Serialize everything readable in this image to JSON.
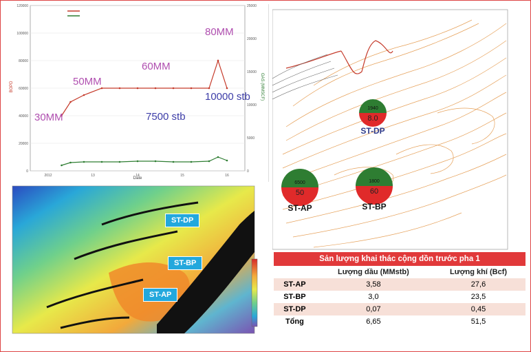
{
  "chart_data": {
    "type": "line",
    "xlabel": "Date",
    "ylabel_left": "BOPD",
    "ylabel_right": "GAS (MMSCF)",
    "x_ticks": [
      "2012",
      "13",
      "14",
      "15",
      "16"
    ],
    "y_left_ticks": [
      "0",
      "20000",
      "40000",
      "60000",
      "80000",
      "100000",
      "120000"
    ],
    "y_right_ticks": [
      "0",
      "5000",
      "10000",
      "15000",
      "20000",
      "25000"
    ],
    "ylim_left": [
      0,
      120000
    ],
    "ylim_right": [
      0,
      25000
    ],
    "series": [
      {
        "color": "#c53a2a",
        "x": [
          2012.3,
          2012.5,
          2012.8,
          2013.2,
          2013.6,
          2014.0,
          2014.4,
          2014.8,
          2015.2,
          2015.6,
          2015.8,
          2016.0
        ],
        "values": [
          40000,
          50000,
          55000,
          60000,
          60000,
          60000,
          60000,
          60000,
          60000,
          60000,
          80000,
          60000
        ]
      },
      {
        "color": "#2e7d32",
        "x": [
          2012.3,
          2012.5,
          2012.8,
          2013.2,
          2013.6,
          2014.0,
          2014.4,
          2014.8,
          2015.2,
          2015.6,
          2015.8,
          2016.0
        ],
        "values": [
          4000,
          6000,
          6500,
          6500,
          6500,
          7000,
          7000,
          6500,
          6500,
          7000,
          10000,
          7500
        ]
      }
    ],
    "annotations": [
      "30MM",
      "50MM",
      "60MM",
      "80MM",
      "7500 stb",
      "10000 stb"
    ]
  },
  "contour_map": {
    "wells": [
      {
        "name": "ST-DP",
        "top_value": "1940",
        "bottom_value": "8.0"
      },
      {
        "name": "ST-AP",
        "top_value": "6500",
        "bottom_value": "50"
      },
      {
        "name": "ST-BP",
        "top_value": "1800",
        "bottom_value": "60"
      }
    ]
  },
  "heat_map": {
    "wells": [
      "ST-DP",
      "ST-BP",
      "ST-AP"
    ]
  },
  "table": {
    "title": "Sản lượng khai thác cộng dồn trước pha 1",
    "headers": [
      "",
      "Lượng dầu (MMstb)",
      "Lượng khí (Bcf)"
    ],
    "rows": [
      {
        "label": "ST-AP",
        "oil": "3,58",
        "gas": "27,6"
      },
      {
        "label": "ST-BP",
        "oil": "3,0",
        "gas": "23,5"
      },
      {
        "label": "ST-DP",
        "oil": "0,07",
        "gas": "0,45"
      },
      {
        "label": "Tổng",
        "oil": "6,65",
        "gas": "51,5"
      }
    ]
  },
  "colors": {
    "oil": "#c53a2a",
    "gas": "#2e7d32",
    "annotation": "#b04fb0",
    "accent": "#e1393a",
    "well_label": "#23a8dd"
  }
}
